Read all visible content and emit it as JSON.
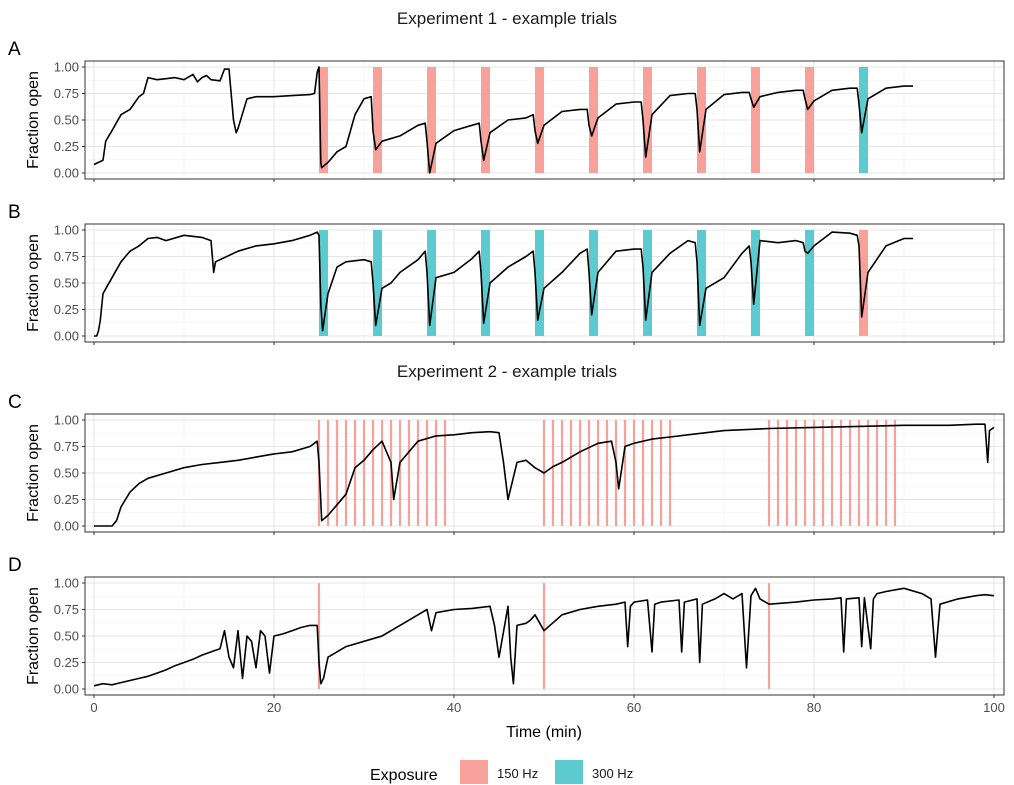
{
  "chart_data": {
    "type": "line",
    "sections": [
      {
        "title": "Experiment 1 - example trials",
        "panels": [
          "A",
          "B"
        ]
      },
      {
        "title": "Experiment 2 - example trials",
        "panels": [
          "C",
          "D"
        ]
      }
    ],
    "x_axis": {
      "label": "Time (min)",
      "range": [
        0,
        100
      ],
      "ticks": [
        0,
        20,
        40,
        60,
        80,
        100
      ],
      "tick_labels": [
        "0",
        "20",
        "40",
        "60",
        "80",
        "100"
      ]
    },
    "y_axis": {
      "label": "Fraction open",
      "range": [
        0,
        1
      ],
      "ticks": [
        0,
        0.25,
        0.5,
        0.75,
        1
      ],
      "tick_labels": [
        "0.00",
        "0.25",
        "0.50",
        "0.75",
        "1.00"
      ]
    },
    "legend": {
      "title": "Exposure",
      "placement": "bottom",
      "items": [
        {
          "label": "150 Hz",
          "color": "#f8a19a"
        },
        {
          "label": "300 Hz",
          "color": "#5ccbcf"
        }
      ]
    },
    "grid": true,
    "panels": [
      {
        "id": "A",
        "exposures": [
          {
            "start": 25.0,
            "end": 26.0,
            "hz": "150 Hz"
          },
          {
            "start": 31.0,
            "end": 32.0,
            "hz": "150 Hz"
          },
          {
            "start": 37.0,
            "end": 38.0,
            "hz": "150 Hz"
          },
          {
            "start": 43.0,
            "end": 44.0,
            "hz": "150 Hz"
          },
          {
            "start": 49.0,
            "end": 50.0,
            "hz": "150 Hz"
          },
          {
            "start": 55.0,
            "end": 56.0,
            "hz": "150 Hz"
          },
          {
            "start": 61.0,
            "end": 62.0,
            "hz": "150 Hz"
          },
          {
            "start": 67.0,
            "end": 68.0,
            "hz": "150 Hz"
          },
          {
            "start": 73.0,
            "end": 74.0,
            "hz": "150 Hz"
          },
          {
            "start": 79.0,
            "end": 80.0,
            "hz": "150 Hz"
          },
          {
            "start": 85.0,
            "end": 86.0,
            "hz": "300 Hz"
          }
        ],
        "series": {
          "x": [
            0.0,
            0.5,
            1.0,
            1.3,
            2.0,
            3.0,
            4.0,
            5.0,
            5.5,
            6.0,
            7.0,
            8.0,
            9.0,
            10.0,
            11.0,
            11.5,
            12.0,
            12.5,
            13.0,
            14.0,
            14.5,
            15.0,
            15.5,
            15.8,
            16.0,
            17.0,
            18.0,
            20.0,
            22.0,
            24.0,
            24.5,
            24.8,
            25.0,
            25.2,
            25.3,
            26.0,
            27.0,
            28.0,
            29.0,
            30.0,
            30.8,
            31.0,
            31.3,
            32.0,
            34.0,
            35.0,
            36.0,
            36.8,
            37.0,
            37.3,
            38.0,
            40.0,
            42.0,
            42.8,
            43.0,
            43.3,
            44.0,
            46.0,
            48.0,
            48.8,
            49.0,
            49.3,
            50.0,
            52.0,
            54.0,
            54.8,
            55.0,
            55.3,
            56.0,
            58.0,
            60.0,
            60.8,
            61.0,
            61.3,
            62.0,
            64.0,
            66.0,
            66.8,
            67.0,
            67.3,
            68.0,
            70.0,
            72.0,
            72.8,
            73.0,
            73.3,
            74.0,
            76.0,
            78.0,
            78.8,
            79.0,
            79.3,
            80.0,
            82.0,
            84.0,
            84.8,
            85.0,
            85.3,
            86.0,
            88.0,
            90.0,
            91.0
          ],
          "y": [
            0.08,
            0.1,
            0.12,
            0.3,
            0.4,
            0.55,
            0.6,
            0.72,
            0.75,
            0.9,
            0.88,
            0.89,
            0.9,
            0.88,
            0.93,
            0.86,
            0.9,
            0.92,
            0.88,
            0.87,
            0.98,
            0.98,
            0.5,
            0.38,
            0.42,
            0.7,
            0.72,
            0.72,
            0.73,
            0.74,
            0.75,
            0.95,
            1.0,
            0.1,
            0.05,
            0.1,
            0.2,
            0.25,
            0.55,
            0.7,
            0.72,
            0.4,
            0.22,
            0.3,
            0.35,
            0.4,
            0.45,
            0.47,
            0.3,
            0.0,
            0.28,
            0.4,
            0.45,
            0.47,
            0.3,
            0.12,
            0.38,
            0.5,
            0.52,
            0.55,
            0.4,
            0.28,
            0.45,
            0.58,
            0.6,
            0.6,
            0.45,
            0.35,
            0.52,
            0.65,
            0.67,
            0.67,
            0.5,
            0.15,
            0.55,
            0.73,
            0.75,
            0.75,
            0.6,
            0.2,
            0.6,
            0.74,
            0.76,
            0.76,
            0.7,
            0.62,
            0.72,
            0.76,
            0.78,
            0.78,
            0.7,
            0.6,
            0.68,
            0.78,
            0.8,
            0.8,
            0.65,
            0.38,
            0.7,
            0.8,
            0.82,
            0.82
          ]
        }
      },
      {
        "id": "B",
        "exposures": [
          {
            "start": 25.0,
            "end": 26.0,
            "hz": "300 Hz"
          },
          {
            "start": 31.0,
            "end": 32.0,
            "hz": "300 Hz"
          },
          {
            "start": 37.0,
            "end": 38.0,
            "hz": "300 Hz"
          },
          {
            "start": 43.0,
            "end": 44.0,
            "hz": "300 Hz"
          },
          {
            "start": 49.0,
            "end": 50.0,
            "hz": "300 Hz"
          },
          {
            "start": 55.0,
            "end": 56.0,
            "hz": "300 Hz"
          },
          {
            "start": 61.0,
            "end": 62.0,
            "hz": "300 Hz"
          },
          {
            "start": 67.0,
            "end": 68.0,
            "hz": "300 Hz"
          },
          {
            "start": 73.0,
            "end": 74.0,
            "hz": "300 Hz"
          },
          {
            "start": 79.0,
            "end": 80.0,
            "hz": "300 Hz"
          },
          {
            "start": 85.0,
            "end": 86.0,
            "hz": "150 Hz"
          }
        ],
        "series": {
          "x": [
            0.0,
            0.3,
            0.5,
            0.7,
            1.0,
            2.0,
            3.0,
            4.0,
            5.0,
            6.0,
            7.0,
            8.0,
            10.0,
            12.0,
            13.0,
            13.3,
            13.5,
            14.0,
            16.0,
            18.0,
            20.0,
            22.0,
            24.0,
            24.8,
            25.0,
            25.2,
            25.4,
            26.0,
            27.0,
            28.0,
            30.0,
            30.8,
            31.0,
            31.3,
            32.0,
            33.0,
            34.0,
            36.0,
            36.8,
            37.0,
            37.3,
            38.0,
            40.0,
            42.0,
            42.8,
            43.0,
            43.3,
            44.0,
            46.0,
            48.0,
            48.8,
            49.0,
            49.3,
            50.0,
            52.0,
            54.0,
            54.8,
            55.0,
            55.3,
            56.0,
            58.0,
            60.0,
            60.8,
            61.0,
            61.3,
            62.0,
            64.0,
            66.0,
            66.8,
            67.0,
            67.3,
            68.0,
            70.0,
            72.0,
            72.8,
            73.0,
            73.3,
            74.0,
            76.0,
            78.0,
            78.8,
            79.0,
            79.3,
            80.0,
            82.0,
            84.0,
            84.8,
            85.0,
            85.3,
            86.0,
            88.0,
            90.0,
            91.0
          ],
          "y": [
            0.0,
            0.0,
            0.05,
            0.15,
            0.4,
            0.55,
            0.7,
            0.8,
            0.85,
            0.92,
            0.93,
            0.9,
            0.95,
            0.93,
            0.9,
            0.6,
            0.7,
            0.72,
            0.8,
            0.85,
            0.87,
            0.9,
            0.95,
            0.98,
            0.95,
            0.3,
            0.05,
            0.4,
            0.65,
            0.7,
            0.72,
            0.7,
            0.5,
            0.1,
            0.45,
            0.5,
            0.6,
            0.72,
            0.8,
            0.6,
            0.1,
            0.55,
            0.6,
            0.73,
            0.8,
            0.6,
            0.12,
            0.5,
            0.65,
            0.75,
            0.8,
            0.6,
            0.15,
            0.45,
            0.6,
            0.78,
            0.82,
            0.6,
            0.2,
            0.6,
            0.8,
            0.82,
            0.82,
            0.65,
            0.15,
            0.6,
            0.78,
            0.9,
            0.88,
            0.7,
            0.1,
            0.45,
            0.55,
            0.78,
            0.85,
            0.7,
            0.3,
            0.9,
            0.88,
            0.9,
            0.88,
            0.8,
            0.78,
            0.85,
            0.98,
            0.97,
            0.95,
            0.85,
            0.18,
            0.6,
            0.85,
            0.92,
            0.92
          ]
        }
      },
      {
        "id": "C",
        "exposure_lines": {
          "hz": "150 Hz",
          "x": [
            25,
            26,
            27,
            28,
            29,
            30,
            31,
            32,
            33,
            34,
            35,
            36,
            37,
            38,
            39,
            50,
            51,
            52,
            53,
            54,
            55,
            56,
            57,
            58,
            59,
            60,
            61,
            62,
            63,
            64,
            75,
            76,
            77,
            78,
            79,
            80,
            81,
            82,
            83,
            84,
            85,
            86,
            87,
            88,
            89
          ]
        },
        "series": {
          "x": [
            0.0,
            1.0,
            2.0,
            2.5,
            3.0,
            4.0,
            5.0,
            6.0,
            8.0,
            10.0,
            12.0,
            14.0,
            16.0,
            18.0,
            20.0,
            22.0,
            24.0,
            24.8,
            25.0,
            25.3,
            26.0,
            27.0,
            28.0,
            29.0,
            30.0,
            31.0,
            32.0,
            33.0,
            33.3,
            34.0,
            36.0,
            38.0,
            40.0,
            42.0,
            44.0,
            45.0,
            45.5,
            46.0,
            47.0,
            48.0,
            49.0,
            50.0,
            51.0,
            52.0,
            54.0,
            56.0,
            57.5,
            58.0,
            58.3,
            59.0,
            60.0,
            62.0,
            64.0,
            66.0,
            70.0,
            75.0,
            80.0,
            85.0,
            90.0,
            95.0,
            98.0,
            99.0,
            99.3,
            99.5,
            100.0
          ],
          "y": [
            0.0,
            0.0,
            0.0,
            0.05,
            0.18,
            0.32,
            0.4,
            0.45,
            0.5,
            0.55,
            0.58,
            0.6,
            0.62,
            0.65,
            0.68,
            0.7,
            0.75,
            0.8,
            0.6,
            0.05,
            0.1,
            0.2,
            0.3,
            0.55,
            0.62,
            0.72,
            0.8,
            0.6,
            0.25,
            0.6,
            0.8,
            0.85,
            0.86,
            0.88,
            0.89,
            0.88,
            0.6,
            0.25,
            0.6,
            0.62,
            0.55,
            0.5,
            0.56,
            0.6,
            0.7,
            0.78,
            0.8,
            0.6,
            0.35,
            0.75,
            0.78,
            0.82,
            0.84,
            0.86,
            0.9,
            0.92,
            0.93,
            0.94,
            0.95,
            0.95,
            0.96,
            0.96,
            0.6,
            0.9,
            0.93
          ]
        }
      },
      {
        "id": "D",
        "exposure_lines": {
          "hz": "150 Hz",
          "x": [
            25,
            50,
            75
          ]
        },
        "series": {
          "x": [
            0.0,
            1.0,
            2.0,
            3.0,
            4.0,
            5.0,
            6.0,
            7.0,
            8.0,
            9.0,
            10.0,
            11.0,
            12.0,
            13.0,
            14.0,
            14.5,
            15.0,
            15.5,
            16.0,
            16.5,
            17.0,
            17.5,
            18.0,
            18.5,
            19.0,
            19.5,
            20.0,
            21.0,
            22.0,
            23.0,
            24.0,
            24.8,
            25.0,
            25.2,
            25.5,
            26.0,
            28.0,
            30.0,
            32.0,
            34.0,
            36.0,
            37.0,
            37.5,
            38.0,
            40.0,
            42.0,
            44.0,
            44.5,
            45.0,
            46.0,
            46.3,
            46.6,
            47.0,
            48.0,
            48.5,
            49.0,
            50.0,
            52.0,
            54.0,
            56.0,
            58.0,
            59.0,
            59.3,
            59.6,
            60.0,
            61.5,
            62.0,
            62.3,
            63.0,
            65.0,
            65.3,
            65.6,
            67.0,
            67.3,
            67.6,
            69.0,
            70.0,
            71.0,
            72.0,
            72.5,
            73.0,
            73.5,
            74.0,
            75.0,
            78.0,
            80.0,
            82.0,
            83.0,
            83.3,
            83.6,
            85.0,
            85.3,
            85.6,
            86.3,
            86.6,
            87.0,
            88.0,
            90.0,
            92.0,
            93.0,
            93.5,
            94.0,
            96.0,
            98.0,
            99.0,
            100.0
          ],
          "y": [
            0.03,
            0.05,
            0.04,
            0.06,
            0.08,
            0.1,
            0.12,
            0.15,
            0.18,
            0.22,
            0.25,
            0.28,
            0.32,
            0.35,
            0.38,
            0.55,
            0.3,
            0.2,
            0.55,
            0.1,
            0.5,
            0.45,
            0.2,
            0.55,
            0.5,
            0.15,
            0.5,
            0.52,
            0.55,
            0.58,
            0.6,
            0.6,
            0.25,
            0.05,
            0.1,
            0.3,
            0.4,
            0.45,
            0.5,
            0.6,
            0.7,
            0.75,
            0.55,
            0.72,
            0.75,
            0.76,
            0.78,
            0.6,
            0.3,
            0.78,
            0.3,
            0.05,
            0.6,
            0.62,
            0.65,
            0.7,
            0.55,
            0.7,
            0.75,
            0.78,
            0.8,
            0.82,
            0.4,
            0.78,
            0.82,
            0.84,
            0.35,
            0.8,
            0.82,
            0.84,
            0.35,
            0.82,
            0.85,
            0.25,
            0.8,
            0.85,
            0.9,
            0.85,
            0.9,
            0.2,
            0.88,
            0.95,
            0.85,
            0.8,
            0.82,
            0.84,
            0.85,
            0.86,
            0.35,
            0.85,
            0.86,
            0.4,
            0.86,
            0.38,
            0.85,
            0.9,
            0.92,
            0.95,
            0.9,
            0.85,
            0.3,
            0.8,
            0.85,
            0.88,
            0.89,
            0.88
          ]
        }
      }
    ]
  }
}
